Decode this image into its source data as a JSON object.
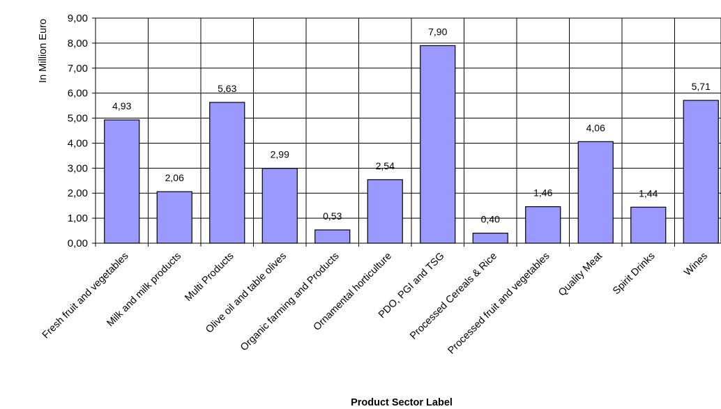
{
  "chart_data": {
    "type": "bar",
    "title": "",
    "xlabel": "Product Sector Label",
    "ylabel": "In Million Euro",
    "ylim": [
      0,
      9
    ],
    "ytick_step": 1,
    "ytick_labels": [
      "0,00",
      "1,00",
      "2,00",
      "3,00",
      "4,00",
      "5,00",
      "6,00",
      "7,00",
      "8,00",
      "9,00"
    ],
    "grid": true,
    "bar_color": "#9999ff",
    "bar_edge_color": "#000000",
    "categories": [
      "Fresh fruit and vegetables",
      "Milk and milk products",
      "Multi Products",
      "Olive oil and table olives",
      "Organic farming and Products",
      "Ornamental horticulture",
      "PDO, PGI and TSG",
      "Processed Cereals & Rice",
      "Processed fruit and vegetables",
      "Quality Meat",
      "Spirit Drinks",
      "Wines"
    ],
    "values": [
      4.93,
      2.06,
      5.63,
      2.99,
      0.53,
      2.54,
      7.9,
      0.4,
      1.46,
      4.06,
      1.44,
      5.71
    ],
    "data_labels": [
      "4,93",
      "2,06",
      "5,63",
      "2,99",
      "0,53",
      "2,54",
      "7,90",
      "0,40",
      "1,46",
      "4,06",
      "1,44",
      "5,71"
    ]
  }
}
